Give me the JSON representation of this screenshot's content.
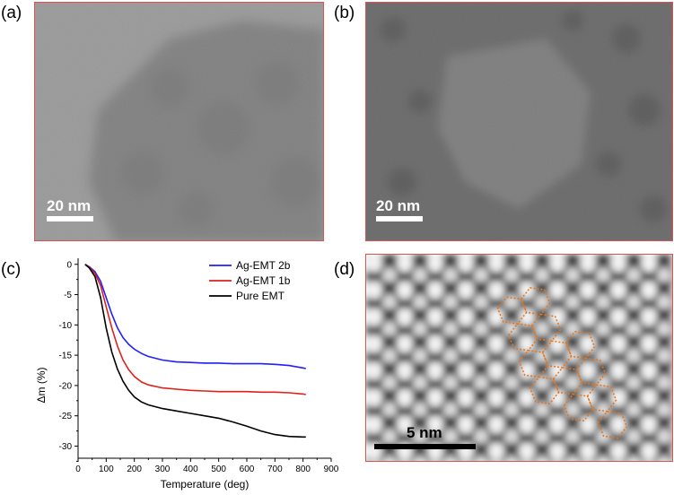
{
  "panels": {
    "a": {
      "label": "(a)",
      "scale_text": "20 nm"
    },
    "b": {
      "label": "(b)",
      "scale_text": "20 nm"
    },
    "c": {
      "label": "(c)"
    },
    "d": {
      "label": "(d)",
      "scale_text": "5 nm"
    }
  },
  "colors": {
    "frame": "#d9534f",
    "series_2b": "#1f1fff",
    "series_1b": "#e0201b",
    "series_pure": "#000000",
    "overlay": "#e8741c"
  },
  "chart_data": {
    "type": "line",
    "xlabel": "Temperature (deg)",
    "ylabel": "Δm (%)",
    "xlim": [
      0,
      900
    ],
    "ylim": [
      -32,
      1
    ],
    "xticks": [
      0,
      100,
      200,
      300,
      400,
      500,
      600,
      700,
      800,
      900
    ],
    "yticks": [
      0,
      -5,
      -10,
      -15,
      -20,
      -25,
      -30
    ],
    "legend_position": "top-right",
    "series": [
      {
        "name": "Ag-EMT 2b",
        "color": "#1f1fff",
        "x": [
          25,
          40,
          60,
          80,
          100,
          120,
          140,
          160,
          180,
          200,
          225,
          250,
          300,
          350,
          400,
          450,
          500,
          550,
          600,
          650,
          700,
          750,
          800,
          810
        ],
        "y": [
          0,
          -0.4,
          -1.2,
          -2.8,
          -5.5,
          -8.2,
          -10.5,
          -12.1,
          -13.2,
          -14.0,
          -14.7,
          -15.2,
          -15.8,
          -16.1,
          -16.2,
          -16.3,
          -16.3,
          -16.4,
          -16.4,
          -16.4,
          -16.5,
          -16.7,
          -17.1,
          -17.2
        ]
      },
      {
        "name": "Ag-EMT 1b",
        "color": "#e0201b",
        "x": [
          25,
          40,
          60,
          80,
          100,
          120,
          140,
          160,
          180,
          200,
          225,
          250,
          300,
          350,
          400,
          450,
          500,
          550,
          600,
          650,
          700,
          750,
          800,
          810
        ],
        "y": [
          0,
          -0.5,
          -1.5,
          -3.5,
          -7.0,
          -10.5,
          -13.5,
          -15.8,
          -17.4,
          -18.5,
          -19.4,
          -19.9,
          -20.4,
          -20.6,
          -20.8,
          -20.9,
          -21.0,
          -21.0,
          -21.0,
          -21.1,
          -21.1,
          -21.2,
          -21.4,
          -21.5
        ]
      },
      {
        "name": "Pure EMT",
        "color": "#000000",
        "x": [
          25,
          40,
          60,
          80,
          100,
          120,
          140,
          160,
          180,
          200,
          225,
          250,
          300,
          350,
          400,
          450,
          500,
          550,
          600,
          650,
          700,
          750,
          800,
          810
        ],
        "y": [
          0,
          -0.6,
          -2.0,
          -5.5,
          -10.5,
          -14.5,
          -17.3,
          -19.3,
          -20.8,
          -21.9,
          -22.7,
          -23.2,
          -23.8,
          -24.2,
          -24.6,
          -25.0,
          -25.4,
          -26.0,
          -26.7,
          -27.5,
          -28.1,
          -28.4,
          -28.5,
          -28.5
        ]
      }
    ]
  }
}
